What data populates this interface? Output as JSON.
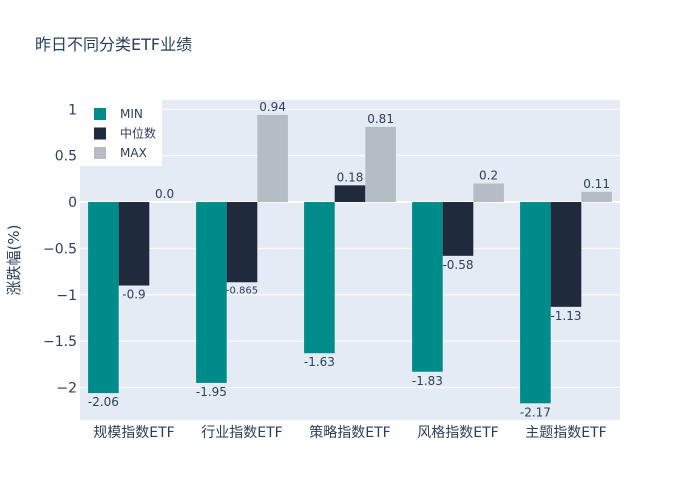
{
  "chart_data": {
    "type": "bar",
    "title": "昨日不同分类ETF业绩",
    "xlabel": "",
    "ylabel": "涨跌幅(%)",
    "ylim": [
      -2.35,
      1.1
    ],
    "yticks": [
      -2,
      -1.5,
      -1,
      -0.5,
      0,
      0.5,
      1
    ],
    "ytick_labels": [
      "−2",
      "−1.5",
      "−1",
      "−0.5",
      "0",
      "0.5",
      "1"
    ],
    "grid": true,
    "legend_position": "top-left",
    "categories": [
      "规模指数ETF",
      "行业指数ETF",
      "策略指数ETF",
      "风格指数ETF",
      "主题指数ETF"
    ],
    "series": [
      {
        "name": "MIN",
        "color": "#008b8b",
        "values": [
          -2.06,
          -1.95,
          -1.63,
          -1.83,
          -2.17
        ],
        "labels": [
          "-2.06",
          "-1.95",
          "-1.63",
          "-1.83",
          "-2.17"
        ]
      },
      {
        "name": "中位数",
        "color": "#1f2a3c",
        "values": [
          -0.9,
          -0.865,
          0.18,
          -0.58,
          -1.13
        ],
        "labels": [
          "-0.9",
          "-0.865",
          "0.18",
          "-0.58",
          "-1.13"
        ]
      },
      {
        "name": "MAX",
        "color": "#b5bcc5",
        "values": [
          0.0,
          0.94,
          0.81,
          0.2,
          0.11
        ],
        "labels": [
          "0.0",
          "0.94",
          "0.81",
          "0.2",
          "0.11"
        ]
      }
    ]
  },
  "colors": {
    "plot_background": "#e5ebf5",
    "grid": "#ffffff",
    "text": "#2a3f5f"
  }
}
